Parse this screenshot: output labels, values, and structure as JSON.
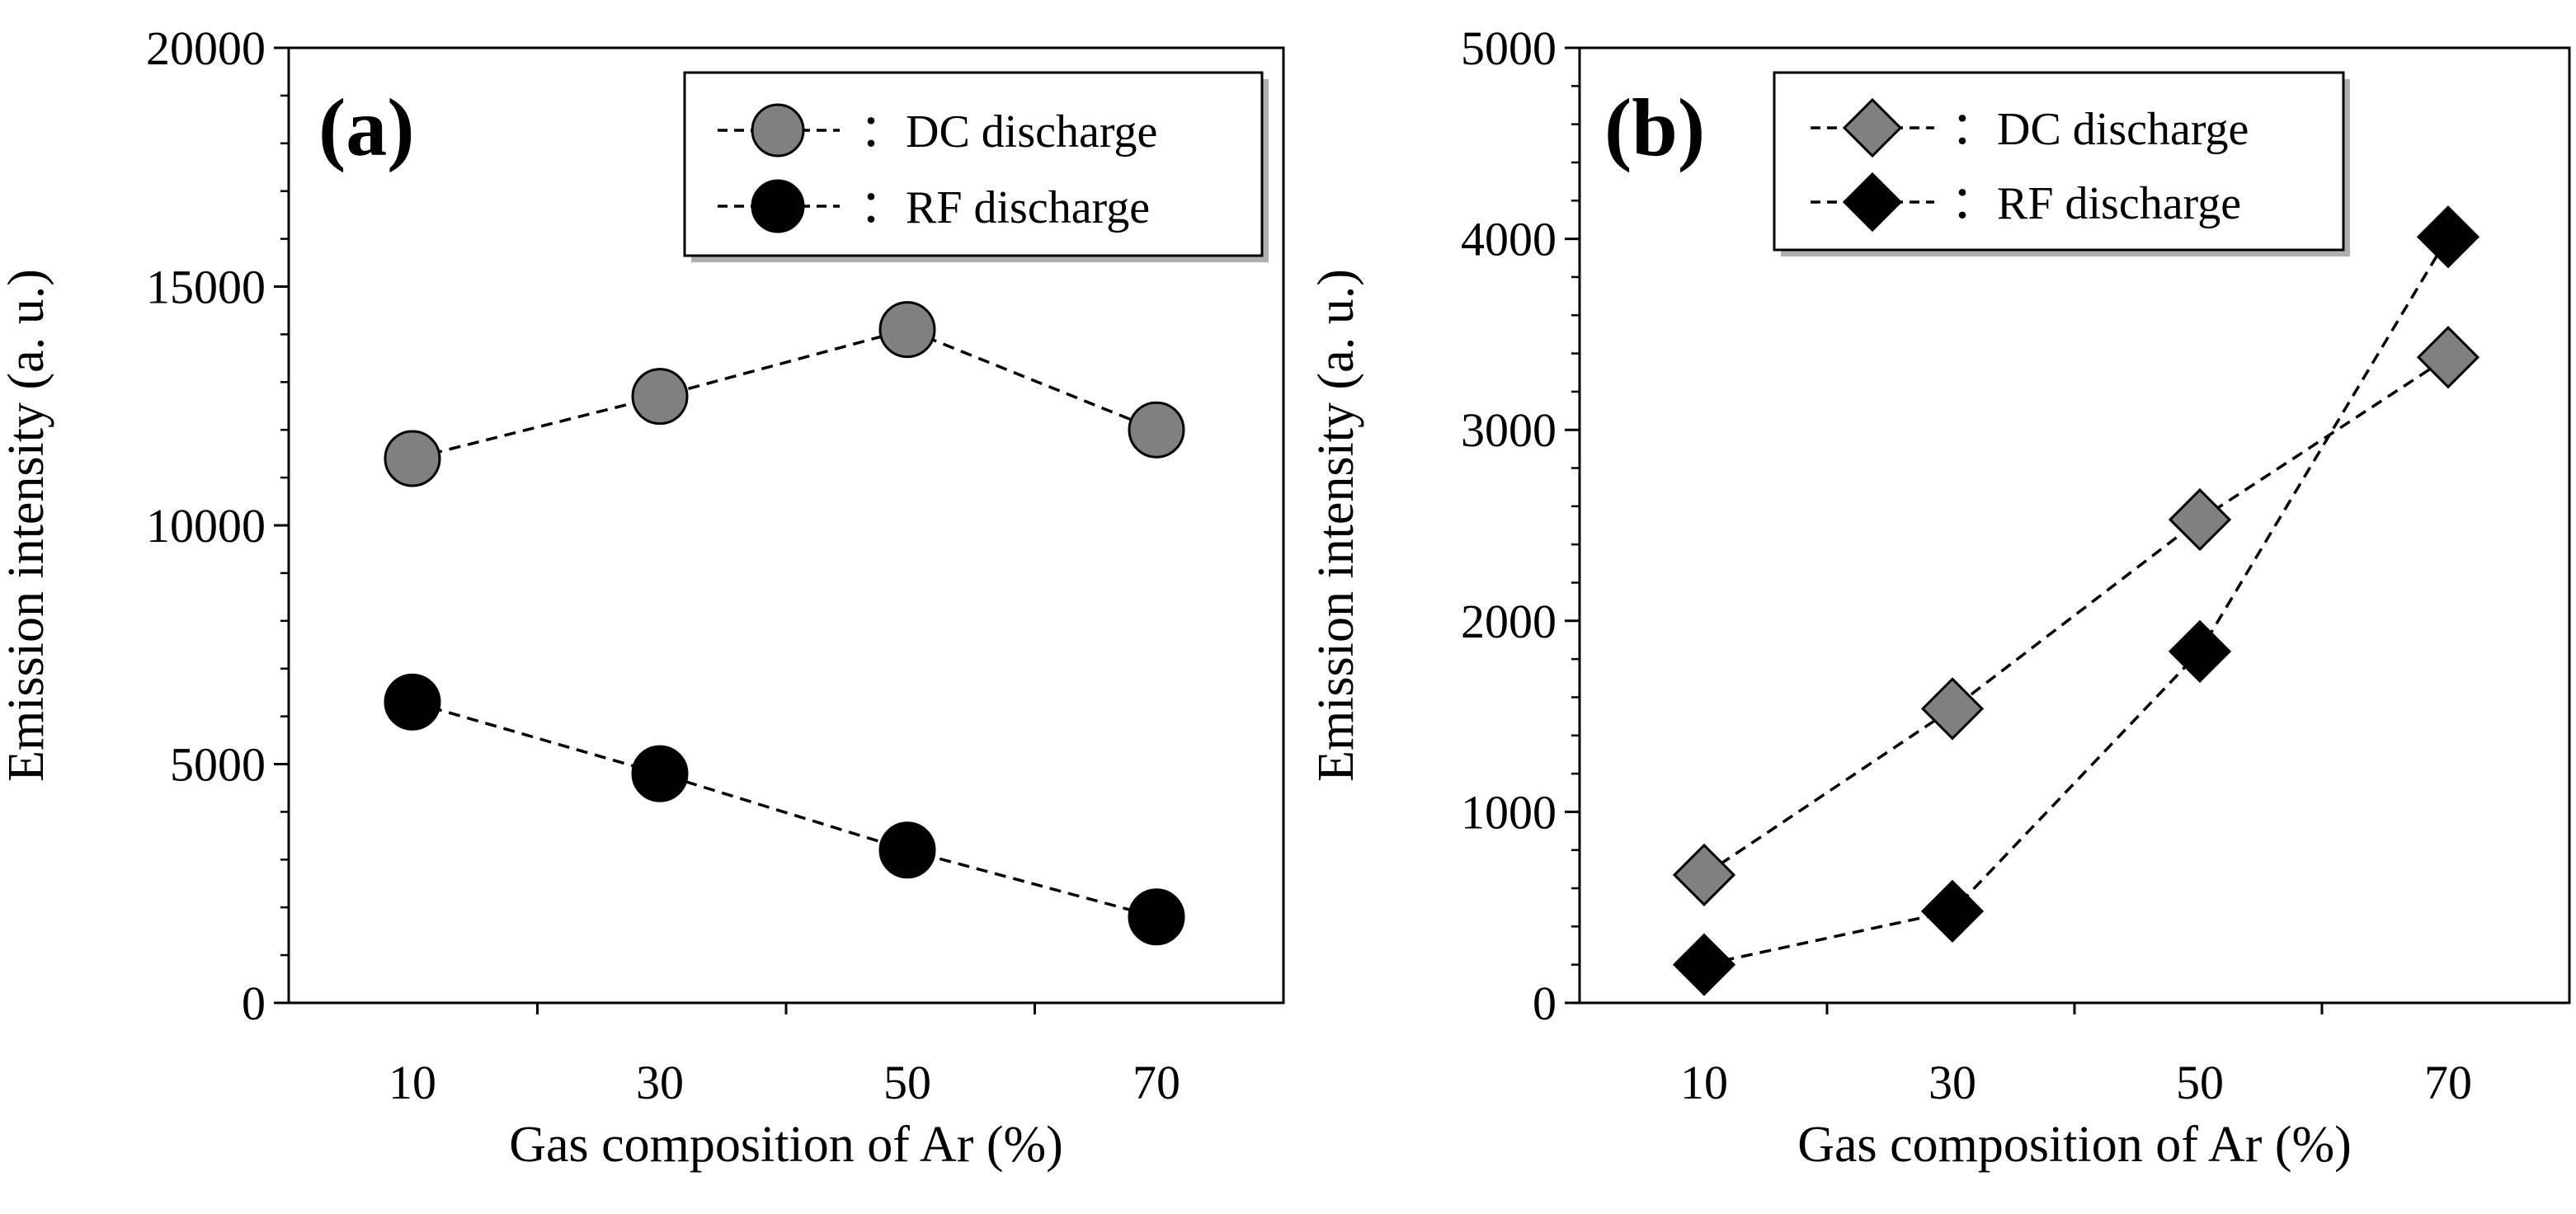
{
  "colors": {
    "dc_marker": "#808080",
    "rf_marker": "#000000",
    "line": "#000000",
    "background": "#ffffff"
  },
  "chart_data": [
    {
      "id": "a",
      "type": "line",
      "panel_label": "(a)",
      "xlabel": "Gas composition of Ar (%)",
      "ylabel": "Emission intensity (a. u.)",
      "categories": [
        10,
        30,
        50,
        70
      ],
      "ylim": [
        0,
        20000
      ],
      "yticks": [
        0,
        5000,
        10000,
        15000,
        20000
      ],
      "marker": "circle",
      "legend_position": "top-right",
      "series": [
        {
          "name": "DC discharge",
          "legend_label": "：DC discharge",
          "color": "#808080",
          "values": [
            11400,
            12700,
            14100,
            12000
          ]
        },
        {
          "name": "RF discharge",
          "legend_label": "：RF discharge",
          "color": "#000000",
          "values": [
            6300,
            4800,
            3200,
            1800
          ]
        }
      ]
    },
    {
      "id": "b",
      "type": "line",
      "panel_label": "(b)",
      "xlabel": "Gas composition of Ar (%)",
      "ylabel": "Emission intensity (a. u.)",
      "categories": [
        10,
        30,
        50,
        70
      ],
      "ylim": [
        0,
        5000
      ],
      "yticks": [
        0,
        1000,
        2000,
        3000,
        4000,
        5000
      ],
      "marker": "diamond",
      "legend_position": "top-left",
      "series": [
        {
          "name": "DC discharge",
          "legend_label": "：DC discharge",
          "color": "#808080",
          "values": [
            670,
            1540,
            2530,
            3380
          ]
        },
        {
          "name": "RF discharge",
          "legend_label": "：RF discharge",
          "color": "#000000",
          "values": [
            200,
            480,
            1840,
            4010
          ]
        }
      ]
    }
  ]
}
